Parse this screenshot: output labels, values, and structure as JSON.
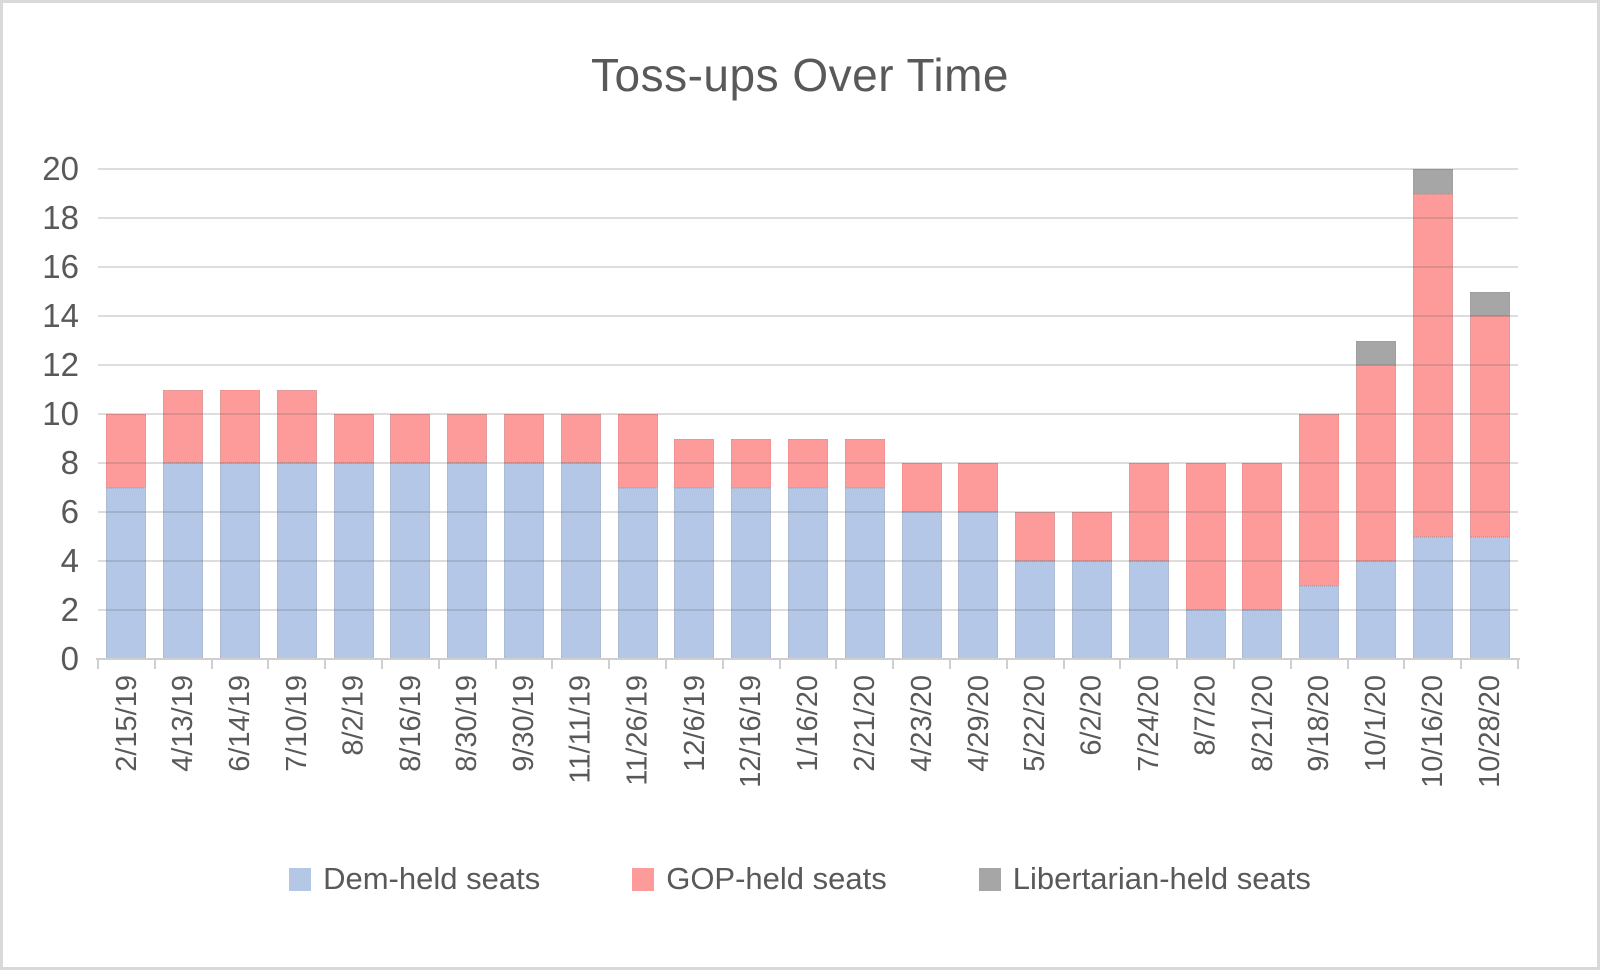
{
  "chart_data": {
    "type": "bar",
    "stacked": true,
    "title": "Toss-ups Over Time",
    "categories": [
      "2/15/19",
      "4/13/19",
      "6/14/19",
      "7/10/19",
      "8/2/19",
      "8/16/19",
      "8/30/19",
      "9/30/19",
      "11/11/19",
      "11/26/19",
      "12/6/19",
      "12/16/19",
      "1/16/20",
      "2/21/20",
      "4/23/20",
      "4/29/20",
      "5/22/20",
      "6/2/20",
      "7/24/20",
      "8/7/20",
      "8/21/20",
      "9/18/20",
      "10/1/20",
      "10/16/20",
      "10/28/20"
    ],
    "series": [
      {
        "name": "Dem-held seats",
        "color": "#B4C7E7",
        "values": [
          7,
          8,
          8,
          8,
          8,
          8,
          8,
          8,
          8,
          7,
          7,
          7,
          7,
          7,
          6,
          6,
          4,
          4,
          4,
          2,
          2,
          3,
          4,
          5,
          5
        ]
      },
      {
        "name": "GOP-held seats",
        "color": "#FD9A9A",
        "values": [
          3,
          3,
          3,
          3,
          2,
          2,
          2,
          2,
          2,
          3,
          2,
          2,
          2,
          2,
          2,
          2,
          2,
          2,
          4,
          6,
          6,
          7,
          8,
          14,
          9
        ]
      },
      {
        "name": "Libertarian-held seats",
        "color": "#A6A6A6",
        "values": [
          0,
          0,
          0,
          0,
          0,
          0,
          0,
          0,
          0,
          0,
          0,
          0,
          0,
          0,
          0,
          0,
          0,
          0,
          0,
          0,
          0,
          0,
          1,
          1,
          1
        ]
      }
    ],
    "totals": [
      10,
      11,
      11,
      11,
      10,
      10,
      10,
      10,
      10,
      10,
      9,
      9,
      9,
      9,
      8,
      8,
      6,
      6,
      8,
      8,
      8,
      10,
      13,
      20,
      15
    ],
    "xlabel": "",
    "ylabel": "",
    "ylim": [
      0,
      20
    ],
    "y_ticks": [
      0,
      2,
      4,
      6,
      8,
      10,
      12,
      14,
      16,
      18,
      20
    ],
    "grid": true,
    "legend_position": "bottom"
  },
  "styles": {
    "text_color": "#595959",
    "gridline_color": "#D9D9D9",
    "axis_color": "#CFCFCF",
    "frame_border_color": "#D9D9D9",
    "background": "#FFFFFF"
  }
}
